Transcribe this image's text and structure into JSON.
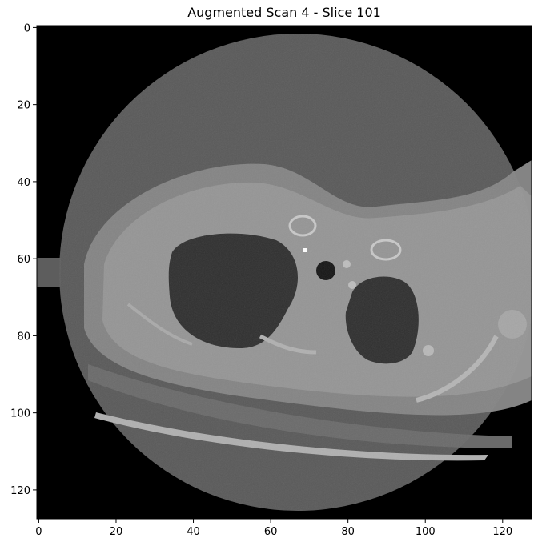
{
  "title": "Augmented Scan 4 - Slice 101",
  "image": {
    "description": "grayscale axial CT slice on black background, circular field of view",
    "colormap": "gray"
  },
  "x_axis": {
    "ticks": [
      0,
      20,
      40,
      60,
      80,
      100,
      120
    ],
    "range": [
      -0.5,
      127.5
    ]
  },
  "y_axis": {
    "ticks": [
      0,
      20,
      40,
      60,
      80,
      100,
      120
    ],
    "range": [
      -0.5,
      127.5
    ]
  }
}
